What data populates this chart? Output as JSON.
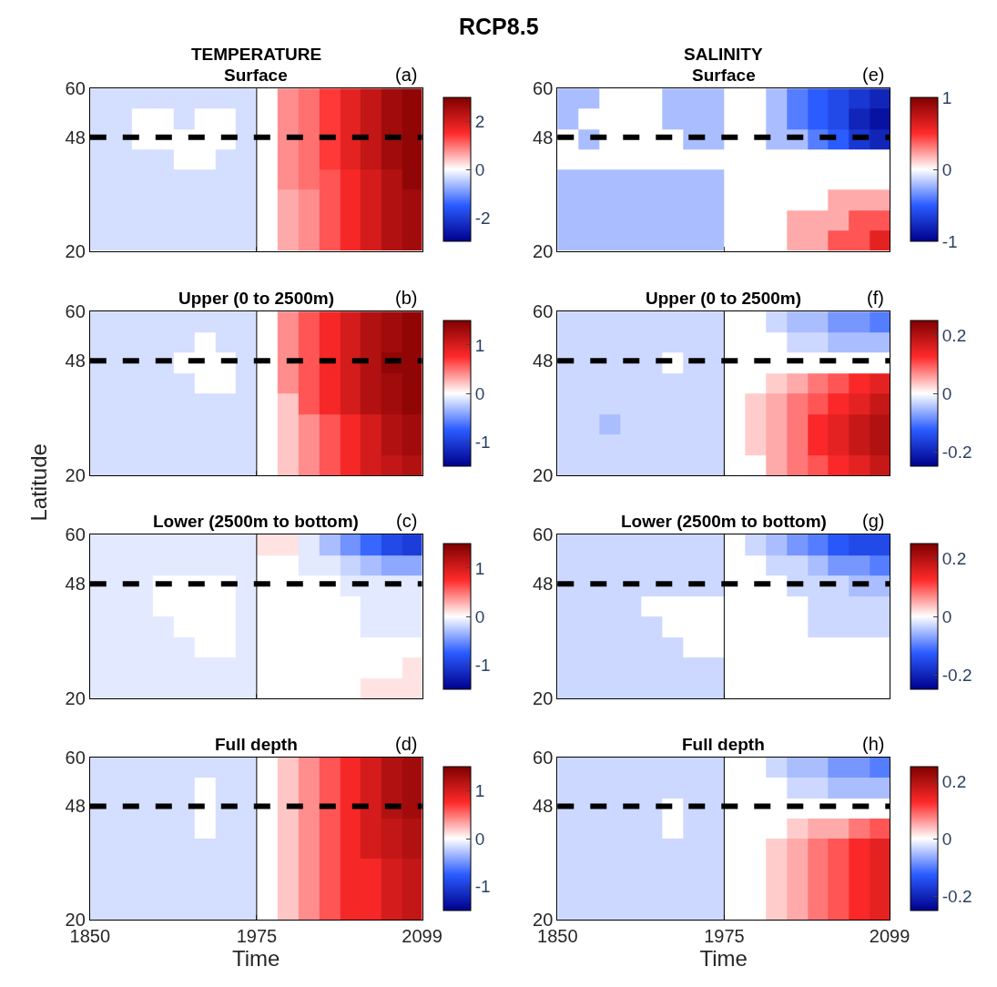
{
  "chart_data": [
    {
      "type": "heatmap",
      "title": "Surface",
      "annotations": [
        "RCP8.5",
        "TEMPERATURE",
        "(a)"
      ],
      "x": [
        1858,
        1874,
        1889,
        1905,
        1921,
        1936,
        1952,
        1967,
        1983,
        1998,
        2014,
        2030,
        2045,
        2061,
        2076,
        2092
      ],
      "y": [
        57.5,
        52.5,
        47.5,
        42.5,
        37.5,
        32.5,
        27.5,
        22.5
      ],
      "xlim": [
        1850,
        2099
      ],
      "ylim": [
        20,
        60
      ],
      "xticks": [
        1850,
        1975,
        2099
      ],
      "yticks": [
        20,
        48,
        60
      ],
      "clim": [
        -3,
        3
      ],
      "cticks": [
        -2,
        0,
        2
      ],
      "tick_labels": "y",
      "ref_lines": [
        {
          "axis": "x",
          "value": 1975,
          "color": "#000000",
          "line_style": "solid"
        },
        {
          "axis": "y",
          "value": 48,
          "color": "#000000",
          "line_style": "dashed"
        }
      ],
      "cells": [
        [
          -0.3,
          -0.3,
          -0.3,
          -0.3,
          -0.3,
          -0.3,
          -0.3,
          -0.3,
          0,
          0.8,
          1.0,
          1.4,
          1.8,
          2.2,
          2.6,
          2.8
        ],
        [
          -0.3,
          -0.3,
          0,
          0,
          -0.3,
          0,
          0,
          -0.3,
          0,
          0.8,
          1.0,
          1.4,
          1.8,
          2.2,
          2.6,
          2.8
        ],
        [
          -0.3,
          -0.3,
          0,
          0,
          0,
          0,
          0,
          -0.3,
          0,
          0.8,
          1.0,
          1.4,
          1.8,
          2.2,
          2.6,
          2.8
        ],
        [
          -0.3,
          -0.3,
          -0.3,
          -0.3,
          0,
          0,
          -0.3,
          -0.3,
          0,
          0.8,
          1.0,
          1.4,
          1.8,
          2.2,
          2.6,
          2.8
        ],
        [
          -0.3,
          -0.3,
          -0.3,
          -0.3,
          -0.3,
          -0.3,
          -0.3,
          -0.3,
          0,
          0.8,
          1.0,
          1.2,
          1.6,
          2.0,
          2.4,
          2.8
        ],
        [
          -0.3,
          -0.3,
          -0.3,
          -0.3,
          -0.3,
          -0.3,
          -0.3,
          -0.3,
          0,
          0.6,
          0.8,
          1.2,
          1.6,
          2.0,
          2.4,
          2.6
        ],
        [
          -0.3,
          -0.3,
          -0.3,
          -0.3,
          -0.3,
          -0.3,
          -0.3,
          -0.3,
          0,
          0.6,
          0.8,
          1.2,
          1.6,
          2.0,
          2.4,
          2.6
        ],
        [
          -0.3,
          -0.3,
          -0.3,
          -0.3,
          -0.3,
          -0.3,
          -0.3,
          -0.3,
          0,
          0.6,
          0.8,
          1.2,
          1.6,
          2.0,
          2.4,
          2.6
        ]
      ]
    },
    {
      "type": "heatmap",
      "title": "Upper (0 to 2500m)",
      "annotations": [
        "(b)"
      ],
      "ylabel": "Latitude",
      "x": [
        1858,
        1874,
        1889,
        1905,
        1921,
        1936,
        1952,
        1967,
        1983,
        1998,
        2014,
        2030,
        2045,
        2061,
        2076,
        2092
      ],
      "y": [
        57.5,
        52.5,
        47.5,
        42.5,
        37.5,
        32.5,
        27.5,
        22.5
      ],
      "xlim": [
        1850,
        2099
      ],
      "ylim": [
        20,
        60
      ],
      "xticks": [
        1850,
        1975,
        2099
      ],
      "yticks": [
        20,
        48,
        60
      ],
      "clim": [
        -1.5,
        1.5
      ],
      "cticks": [
        -1,
        0,
        1
      ],
      "tick_labels": "y",
      "ref_lines": [
        {
          "axis": "x",
          "value": 1975,
          "color": "#000000",
          "line_style": "solid"
        },
        {
          "axis": "y",
          "value": 48,
          "color": "#000000",
          "line_style": "dashed"
        }
      ],
      "cells": [
        [
          -0.15,
          -0.15,
          -0.15,
          -0.15,
          -0.15,
          -0.15,
          -0.15,
          -0.15,
          0,
          0.4,
          0.6,
          0.8,
          1.0,
          1.2,
          1.3,
          1.4
        ],
        [
          -0.15,
          -0.15,
          -0.15,
          -0.15,
          -0.15,
          0,
          -0.15,
          -0.15,
          0,
          0.4,
          0.6,
          0.8,
          1.0,
          1.2,
          1.3,
          1.4
        ],
        [
          -0.15,
          -0.15,
          -0.15,
          -0.15,
          0,
          0,
          0,
          -0.15,
          0,
          0.4,
          0.6,
          0.8,
          1.0,
          1.2,
          1.4,
          1.4
        ],
        [
          -0.15,
          -0.15,
          -0.15,
          -0.15,
          -0.15,
          0,
          0,
          -0.15,
          0,
          0.4,
          0.6,
          0.8,
          1.0,
          1.2,
          1.3,
          1.4
        ],
        [
          -0.15,
          -0.15,
          -0.15,
          -0.15,
          -0.15,
          -0.15,
          -0.15,
          -0.15,
          0,
          0.2,
          0.6,
          0.8,
          1.0,
          1.2,
          1.3,
          1.4
        ],
        [
          -0.15,
          -0.15,
          -0.15,
          -0.15,
          -0.15,
          -0.15,
          -0.15,
          -0.15,
          0,
          0.2,
          0.4,
          0.6,
          0.8,
          1.0,
          1.2,
          1.3
        ],
        [
          -0.15,
          -0.15,
          -0.15,
          -0.15,
          -0.15,
          -0.15,
          -0.15,
          -0.15,
          0,
          0.2,
          0.4,
          0.6,
          0.8,
          1.0,
          1.2,
          1.3
        ],
        [
          -0.15,
          -0.15,
          -0.15,
          -0.15,
          -0.15,
          -0.15,
          -0.15,
          -0.15,
          0,
          0.2,
          0.4,
          0.6,
          0.8,
          1.0,
          1.1,
          1.2
        ]
      ]
    },
    {
      "type": "heatmap",
      "title": "Lower (2500m to bottom)",
      "annotations": [
        "(c)"
      ],
      "x": [
        1858,
        1874,
        1889,
        1905,
        1921,
        1936,
        1952,
        1967,
        1983,
        1998,
        2014,
        2030,
        2045,
        2061,
        2076,
        2092
      ],
      "y": [
        57.5,
        52.5,
        47.5,
        42.5,
        37.5,
        32.5,
        27.5,
        22.5
      ],
      "xlim": [
        1850,
        2099
      ],
      "ylim": [
        20,
        60
      ],
      "xticks": [
        1850,
        1975,
        2099
      ],
      "yticks": [
        20,
        48,
        60
      ],
      "clim": [
        -1.5,
        1.5
      ],
      "cticks": [
        -1,
        0,
        1
      ],
      "tick_labels": "y",
      "ref_lines": [
        {
          "axis": "x",
          "value": 1975,
          "color": "#000000",
          "line_style": "solid"
        },
        {
          "axis": "y",
          "value": 48,
          "color": "#000000",
          "line_style": "dashed"
        }
      ],
      "cells": [
        [
          -0.1,
          -0.1,
          -0.1,
          -0.1,
          -0.1,
          -0.1,
          -0.1,
          -0.1,
          0.1,
          0.1,
          -0.1,
          -0.3,
          -0.5,
          -0.7,
          -0.9,
          -1.0
        ],
        [
          -0.1,
          -0.1,
          -0.1,
          -0.1,
          -0.1,
          -0.1,
          -0.1,
          -0.1,
          0,
          0,
          -0.1,
          -0.1,
          -0.2,
          -0.3,
          -0.4,
          -0.4
        ],
        [
          -0.1,
          -0.1,
          -0.1,
          0,
          0,
          0,
          0,
          -0.1,
          0,
          0,
          0,
          0,
          -0.1,
          -0.1,
          -0.1,
          -0.1
        ],
        [
          -0.1,
          -0.1,
          -0.1,
          0,
          0,
          0,
          0,
          -0.1,
          0,
          0,
          0,
          0,
          0,
          -0.1,
          -0.1,
          -0.1
        ],
        [
          -0.1,
          -0.1,
          -0.1,
          -0.1,
          0,
          0,
          0,
          -0.1,
          0,
          0,
          0,
          0,
          0,
          -0.1,
          -0.1,
          -0.1
        ],
        [
          -0.1,
          -0.1,
          -0.1,
          -0.1,
          -0.1,
          0,
          0,
          -0.1,
          0,
          0,
          0,
          0,
          0,
          0,
          0,
          0
        ],
        [
          -0.1,
          -0.1,
          -0.1,
          -0.1,
          -0.1,
          -0.1,
          -0.1,
          -0.1,
          0,
          0,
          0,
          0,
          0,
          0,
          0,
          0.1
        ],
        [
          -0.1,
          -0.1,
          -0.1,
          -0.1,
          -0.1,
          -0.1,
          -0.1,
          -0.1,
          0,
          0,
          0,
          0,
          0,
          0.1,
          0.1,
          0.1
        ]
      ]
    },
    {
      "type": "heatmap",
      "title": "Full depth",
      "annotations": [
        "(d)"
      ],
      "xlabel": "Time",
      "x": [
        1858,
        1874,
        1889,
        1905,
        1921,
        1936,
        1952,
        1967,
        1983,
        1998,
        2014,
        2030,
        2045,
        2061,
        2076,
        2092
      ],
      "y": [
        57.5,
        52.5,
        47.5,
        42.5,
        37.5,
        32.5,
        27.5,
        22.5
      ],
      "xlim": [
        1850,
        2099
      ],
      "ylim": [
        20,
        60
      ],
      "xticks": [
        1850,
        1975,
        2099
      ],
      "yticks": [
        20,
        48,
        60
      ],
      "clim": [
        -1.5,
        1.5
      ],
      "cticks": [
        -1,
        0,
        1
      ],
      "ref_lines": [
        {
          "axis": "x",
          "value": 1975,
          "color": "#000000",
          "line_style": "solid"
        },
        {
          "axis": "y",
          "value": 48,
          "color": "#000000",
          "line_style": "dashed"
        }
      ],
      "cells": [
        [
          -0.15,
          -0.15,
          -0.15,
          -0.15,
          -0.15,
          -0.15,
          -0.15,
          -0.15,
          0,
          0.2,
          0.4,
          0.6,
          0.8,
          1.0,
          1.2,
          1.3
        ],
        [
          -0.15,
          -0.15,
          -0.15,
          -0.15,
          -0.15,
          0,
          -0.15,
          -0.15,
          0,
          0.2,
          0.4,
          0.6,
          0.8,
          1.0,
          1.2,
          1.3
        ],
        [
          -0.15,
          -0.15,
          -0.15,
          -0.15,
          -0.15,
          0,
          -0.15,
          -0.15,
          0,
          0.2,
          0.4,
          0.6,
          0.8,
          1.0,
          1.2,
          1.3
        ],
        [
          -0.15,
          -0.15,
          -0.15,
          -0.15,
          -0.15,
          0,
          -0.15,
          -0.15,
          0,
          0.2,
          0.4,
          0.6,
          0.8,
          1.0,
          1.1,
          1.2
        ],
        [
          -0.15,
          -0.15,
          -0.15,
          -0.15,
          -0.15,
          -0.15,
          -0.15,
          -0.15,
          0,
          0.2,
          0.4,
          0.6,
          0.8,
          1.0,
          1.1,
          1.2
        ],
        [
          -0.15,
          -0.15,
          -0.15,
          -0.15,
          -0.15,
          -0.15,
          -0.15,
          -0.15,
          0,
          0.2,
          0.4,
          0.6,
          0.8,
          0.8,
          1.0,
          1.1
        ],
        [
          -0.15,
          -0.15,
          -0.15,
          -0.15,
          -0.15,
          -0.15,
          -0.15,
          -0.15,
          0,
          0.2,
          0.4,
          0.6,
          0.8,
          0.8,
          1.0,
          1.1
        ],
        [
          -0.15,
          -0.15,
          -0.15,
          -0.15,
          -0.15,
          -0.15,
          -0.15,
          -0.15,
          0,
          0.2,
          0.4,
          0.6,
          0.8,
          0.8,
          1.0,
          1.1
        ]
      ]
    },
    {
      "type": "heatmap",
      "title": "Surface",
      "annotations": [
        "SALINITY",
        "(e)"
      ],
      "x": [
        1858,
        1874,
        1889,
        1905,
        1921,
        1936,
        1952,
        1967,
        1983,
        1998,
        2014,
        2030,
        2045,
        2061,
        2076,
        2092
      ],
      "y": [
        57.5,
        52.5,
        47.5,
        42.5,
        37.5,
        32.5,
        27.5,
        22.5
      ],
      "xlim": [
        1850,
        2099
      ],
      "ylim": [
        20,
        60
      ],
      "xticks": [
        1850,
        1975,
        2099
      ],
      "yticks": [
        20,
        48,
        60
      ],
      "clim": [
        -1,
        1
      ],
      "cticks": [
        -1,
        0,
        1
      ],
      "tick_labels": "y",
      "ref_lines": [
        {
          "axis": "y",
          "value": 48,
          "color": "#000000",
          "line_style": "dashed"
        }
      ],
      "cells": [
        [
          -0.2,
          -0.2,
          0,
          0,
          0,
          -0.2,
          -0.2,
          -0.2,
          0,
          0,
          -0.2,
          -0.4,
          -0.5,
          -0.6,
          -0.7,
          -0.8
        ],
        [
          -0.2,
          0,
          0,
          0,
          0,
          -0.2,
          -0.2,
          -0.2,
          0,
          0,
          -0.2,
          -0.4,
          -0.5,
          -0.6,
          -0.8,
          -0.9
        ],
        [
          0,
          -0.2,
          0,
          0,
          0,
          0,
          -0.2,
          -0.2,
          0,
          0,
          -0.2,
          -0.2,
          -0.4,
          -0.5,
          -0.7,
          -0.8
        ],
        [
          0,
          0,
          0,
          0,
          0,
          0,
          0,
          0,
          0,
          0,
          0,
          0,
          0,
          0,
          0,
          0
        ],
        [
          -0.2,
          -0.2,
          -0.2,
          -0.2,
          -0.2,
          -0.2,
          -0.2,
          -0.2,
          0,
          0,
          0,
          0,
          0,
          0,
          0,
          0
        ],
        [
          -0.2,
          -0.2,
          -0.2,
          -0.2,
          -0.2,
          -0.2,
          -0.2,
          -0.2,
          0,
          0,
          0,
          0,
          0,
          0.2,
          0.2,
          0.2
        ],
        [
          -0.2,
          -0.2,
          -0.2,
          -0.2,
          -0.2,
          -0.2,
          -0.2,
          -0.2,
          0,
          0,
          0,
          0.2,
          0.2,
          0.2,
          0.4,
          0.4
        ],
        [
          -0.2,
          -0.2,
          -0.2,
          -0.2,
          -0.2,
          -0.2,
          -0.2,
          -0.2,
          0,
          0,
          0,
          0.2,
          0.2,
          0.4,
          0.4,
          0.6
        ]
      ]
    },
    {
      "type": "heatmap",
      "title": "Upper (0 to 2500m)",
      "annotations": [
        "(f)"
      ],
      "x": [
        1858,
        1874,
        1889,
        1905,
        1921,
        1936,
        1952,
        1967,
        1983,
        1998,
        2014,
        2030,
        2045,
        2061,
        2076,
        2092
      ],
      "y": [
        57.5,
        52.5,
        47.5,
        42.5,
        37.5,
        32.5,
        27.5,
        22.5
      ],
      "xlim": [
        1850,
        2099
      ],
      "ylim": [
        20,
        60
      ],
      "xticks": [
        1850,
        1975,
        2099
      ],
      "yticks": [
        20,
        48,
        60
      ],
      "clim": [
        -0.25,
        0.25
      ],
      "cticks": [
        -0.2,
        0,
        0.2
      ],
      "tick_labels": "y",
      "ref_lines": [
        {
          "axis": "x",
          "value": 1975,
          "color": "#000000",
          "line_style": "solid"
        },
        {
          "axis": "y",
          "value": 48,
          "color": "#000000",
          "line_style": "dashed"
        }
      ],
      "cells": [
        [
          -0.03,
          -0.03,
          -0.03,
          -0.03,
          -0.03,
          -0.03,
          -0.03,
          -0.03,
          0,
          0,
          -0.03,
          -0.05,
          -0.05,
          -0.08,
          -0.08,
          -0.1
        ],
        [
          -0.03,
          -0.03,
          -0.03,
          -0.03,
          -0.03,
          -0.03,
          -0.03,
          -0.03,
          0,
          0,
          0,
          -0.03,
          -0.03,
          -0.05,
          -0.05,
          -0.05
        ],
        [
          -0.03,
          -0.03,
          -0.03,
          -0.03,
          -0.03,
          0,
          -0.03,
          -0.03,
          0,
          0,
          0,
          0,
          0,
          0,
          0,
          0
        ],
        [
          -0.03,
          -0.03,
          -0.03,
          -0.03,
          -0.03,
          -0.03,
          -0.03,
          -0.03,
          0,
          0,
          0.03,
          0.05,
          0.08,
          0.1,
          0.13,
          0.15
        ],
        [
          -0.03,
          -0.03,
          -0.03,
          -0.03,
          -0.03,
          -0.03,
          -0.03,
          -0.03,
          0,
          0.03,
          0.05,
          0.08,
          0.1,
          0.13,
          0.15,
          0.18
        ],
        [
          -0.03,
          -0.03,
          -0.05,
          -0.03,
          -0.03,
          -0.03,
          -0.03,
          -0.03,
          0,
          0.03,
          0.05,
          0.08,
          0.13,
          0.15,
          0.18,
          0.2
        ],
        [
          -0.03,
          -0.03,
          -0.03,
          -0.03,
          -0.03,
          -0.03,
          -0.03,
          -0.03,
          0,
          0.03,
          0.05,
          0.08,
          0.13,
          0.15,
          0.18,
          0.2
        ],
        [
          -0.03,
          -0.03,
          -0.03,
          -0.03,
          -0.03,
          -0.03,
          -0.03,
          -0.03,
          0,
          0,
          0.05,
          0.08,
          0.1,
          0.13,
          0.15,
          0.18
        ]
      ]
    },
    {
      "type": "heatmap",
      "title": "Lower (2500m to bottom)",
      "annotations": [
        "(g)"
      ],
      "x": [
        1858,
        1874,
        1889,
        1905,
        1921,
        1936,
        1952,
        1967,
        1983,
        1998,
        2014,
        2030,
        2045,
        2061,
        2076,
        2092
      ],
      "y": [
        57.5,
        52.5,
        47.5,
        42.5,
        37.5,
        32.5,
        27.5,
        22.5
      ],
      "xlim": [
        1850,
        2099
      ],
      "ylim": [
        20,
        60
      ],
      "xticks": [
        1850,
        1975,
        2099
      ],
      "yticks": [
        20,
        48,
        60
      ],
      "clim": [
        -0.25,
        0.25
      ],
      "cticks": [
        -0.2,
        0,
        0.2
      ],
      "tick_labels": "y",
      "ref_lines": [
        {
          "axis": "x",
          "value": 1975,
          "color": "#000000",
          "line_style": "solid"
        },
        {
          "axis": "y",
          "value": 48,
          "color": "#000000",
          "line_style": "dashed"
        }
      ],
      "cells": [
        [
          -0.03,
          -0.03,
          -0.03,
          -0.03,
          -0.03,
          -0.03,
          -0.03,
          -0.03,
          0,
          -0.03,
          -0.05,
          -0.08,
          -0.1,
          -0.13,
          -0.15,
          -0.15
        ],
        [
          -0.03,
          -0.03,
          -0.03,
          -0.03,
          -0.03,
          -0.03,
          -0.03,
          -0.03,
          0,
          0,
          -0.03,
          -0.03,
          -0.05,
          -0.08,
          -0.08,
          -0.1
        ],
        [
          -0.03,
          -0.03,
          -0.03,
          -0.03,
          -0.03,
          -0.03,
          -0.03,
          -0.03,
          0,
          0,
          0,
          -0.03,
          -0.03,
          -0.03,
          -0.05,
          -0.05
        ],
        [
          -0.03,
          -0.03,
          -0.03,
          -0.03,
          0,
          0,
          0,
          0,
          0,
          0,
          0,
          0,
          -0.03,
          -0.03,
          -0.03,
          -0.03
        ],
        [
          -0.03,
          -0.03,
          -0.03,
          -0.03,
          -0.03,
          0,
          0,
          0,
          0,
          0,
          0,
          0,
          -0.03,
          -0.03,
          -0.03,
          -0.03
        ],
        [
          -0.03,
          -0.03,
          -0.03,
          -0.03,
          -0.03,
          -0.03,
          0,
          0,
          0,
          0,
          0,
          0,
          0,
          0,
          0,
          0
        ],
        [
          -0.03,
          -0.03,
          -0.03,
          -0.03,
          -0.03,
          -0.03,
          -0.03,
          -0.03,
          0,
          0,
          0,
          0,
          0,
          0,
          0,
          0
        ],
        [
          -0.03,
          -0.03,
          -0.03,
          -0.03,
          -0.03,
          -0.03,
          -0.03,
          -0.03,
          0,
          0,
          0,
          0,
          0,
          0,
          0,
          0
        ]
      ]
    },
    {
      "type": "heatmap",
      "title": "Full depth",
      "annotations": [
        "(h)"
      ],
      "xlabel": "Time",
      "x": [
        1858,
        1874,
        1889,
        1905,
        1921,
        1936,
        1952,
        1967,
        1983,
        1998,
        2014,
        2030,
        2045,
        2061,
        2076,
        2092
      ],
      "y": [
        57.5,
        52.5,
        47.5,
        42.5,
        37.5,
        32.5,
        27.5,
        22.5
      ],
      "xlim": [
        1850,
        2099
      ],
      "ylim": [
        20,
        60
      ],
      "xticks": [
        1850,
        1975,
        2099
      ],
      "yticks": [
        20,
        48,
        60
      ],
      "clim": [
        -0.25,
        0.25
      ],
      "cticks": [
        -0.2,
        0,
        0.2
      ],
      "ref_lines": [
        {
          "axis": "x",
          "value": 1975,
          "color": "#000000",
          "line_style": "solid"
        },
        {
          "axis": "y",
          "value": 48,
          "color": "#000000",
          "line_style": "dashed"
        }
      ],
      "cells": [
        [
          -0.03,
          -0.03,
          -0.03,
          -0.03,
          -0.03,
          -0.03,
          -0.03,
          -0.03,
          0,
          0,
          -0.03,
          -0.05,
          -0.05,
          -0.08,
          -0.08,
          -0.1
        ],
        [
          -0.03,
          -0.03,
          -0.03,
          -0.03,
          -0.03,
          -0.03,
          -0.03,
          -0.03,
          0,
          0,
          0,
          -0.03,
          -0.03,
          -0.05,
          -0.05,
          -0.05
        ],
        [
          -0.03,
          -0.03,
          -0.03,
          -0.03,
          -0.03,
          0,
          -0.03,
          -0.03,
          0,
          0,
          0,
          0,
          0,
          0,
          0,
          0
        ],
        [
          -0.03,
          -0.03,
          -0.03,
          -0.03,
          -0.03,
          0,
          -0.03,
          -0.03,
          0,
          0,
          0,
          0.03,
          0.05,
          0.05,
          0.08,
          0.1
        ],
        [
          -0.03,
          -0.03,
          -0.03,
          -0.03,
          -0.03,
          -0.03,
          -0.03,
          -0.03,
          0,
          0,
          0.03,
          0.05,
          0.08,
          0.1,
          0.13,
          0.15
        ],
        [
          -0.03,
          -0.03,
          -0.03,
          -0.03,
          -0.03,
          -0.03,
          -0.03,
          -0.03,
          0,
          0,
          0.03,
          0.05,
          0.08,
          0.1,
          0.13,
          0.15
        ],
        [
          -0.03,
          -0.03,
          -0.03,
          -0.03,
          -0.03,
          -0.03,
          -0.03,
          -0.03,
          0,
          0,
          0.03,
          0.05,
          0.08,
          0.1,
          0.13,
          0.15
        ],
        [
          -0.03,
          -0.03,
          -0.03,
          -0.03,
          -0.03,
          -0.03,
          -0.03,
          -0.03,
          0,
          0,
          0.03,
          0.05,
          0.08,
          0.1,
          0.13,
          0.15
        ]
      ]
    }
  ]
}
